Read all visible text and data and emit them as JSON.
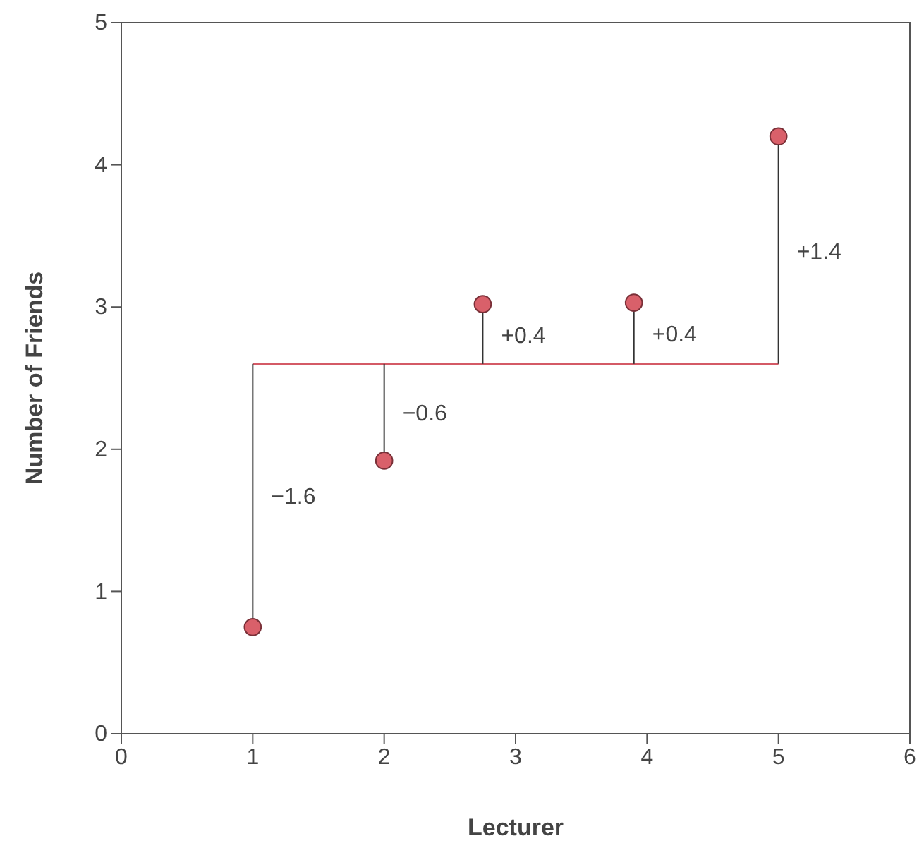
{
  "chart_data": {
    "type": "scatter",
    "xlabel": "Lecturer",
    "ylabel": "Number of Friends",
    "xlim": [
      0,
      6
    ],
    "xticks": [
      0,
      1,
      2,
      3,
      4,
      5,
      6
    ],
    "ylim": [
      0,
      5
    ],
    "yticks": [
      0,
      1,
      2,
      3,
      4,
      5
    ],
    "grid": false,
    "series": [
      {
        "type": "line",
        "color": "#d45a66",
        "x": [
          1,
          5
        ],
        "values": [
          2.6,
          2.6
        ],
        "marker": "none"
      },
      {
        "color": "#d9606a",
        "x": [
          1,
          2,
          2.75,
          3.9,
          5
        ],
        "values": [
          0.75,
          1.92,
          3.02,
          3.03,
          4.2
        ],
        "marker": "circle",
        "errors": [
          [
            0.75,
            2.6
          ],
          [
            1.92,
            2.6
          ],
          [
            2.6,
            3.02
          ],
          [
            2.6,
            3.03
          ],
          [
            2.6,
            4.2
          ]
        ]
      }
    ],
    "annotations": [
      "−1.6",
      "−0.6",
      "+0.4",
      "+0.4",
      "+1.4"
    ]
  }
}
